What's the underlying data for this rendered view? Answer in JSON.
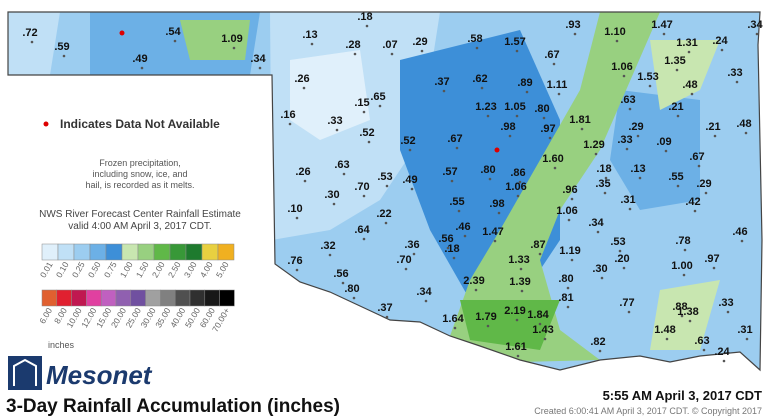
{
  "title": "3-Day Rainfall Accumulation (inches)",
  "timestamp": "5:55 AM April 3, 2017 CDT",
  "created": "Created 6:00:41 AM April 3, 2017 CDT. © Copyright 2017",
  "brand": "Mesonet",
  "missing_note": "Indicates Data Not Available",
  "frozen_note": [
    "Frozen precipitation,",
    "including snow, ice, and",
    "hail, is recorded as it melts."
  ],
  "estimate_note": [
    "NWS River Forecast Center Rainfall Estimate",
    "valid 4:00 AM April 3, 2017 CDT."
  ],
  "legend_unit": "inches",
  "legend_rows": [
    [
      {
        "label": "0.01",
        "color": "#e0f0fb"
      },
      {
        "label": "0.10",
        "color": "#c0e0f6"
      },
      {
        "label": "0.25",
        "color": "#9ccdf0"
      },
      {
        "label": "0.50",
        "color": "#6cb0e6"
      },
      {
        "label": "0.75",
        "color": "#3d8fd8"
      },
      {
        "label": "1.00",
        "color": "#c8e6b0"
      },
      {
        "label": "1.50",
        "color": "#98d080"
      },
      {
        "label": "2.00",
        "color": "#60b848"
      },
      {
        "label": "2.50",
        "color": "#389838"
      },
      {
        "label": "3.00",
        "color": "#1e7a2e"
      },
      {
        "label": "4.00",
        "color": "#e8d040"
      },
      {
        "label": "5.00",
        "color": "#f0b020"
      }
    ],
    [
      {
        "label": "6.00",
        "color": "#e06030"
      },
      {
        "label": "8.00",
        "color": "#e02030"
      },
      {
        "label": "10.00",
        "color": "#c01850"
      },
      {
        "label": "12.00",
        "color": "#e040a0"
      },
      {
        "label": "15.00",
        "color": "#c060c0"
      },
      {
        "label": "20.00",
        "color": "#9060b0"
      },
      {
        "label": "25.00",
        "color": "#7050a0"
      },
      {
        "label": "30.00",
        "color": "#a0a0a0"
      },
      {
        "label": "35.00",
        "color": "#808080"
      },
      {
        "label": "40.00",
        "color": "#505050"
      },
      {
        "label": "50.00",
        "color": "#303030"
      },
      {
        "label": "60.00",
        "color": "#181818"
      },
      {
        "label": "70.00+",
        "color": "#000000"
      }
    ]
  ],
  "stations": [
    ".72",
    ".59",
    ".49",
    ".54",
    "1.09",
    ".34",
    ".18",
    ".13",
    ".28",
    ".07",
    ".29",
    ".58",
    "1.57",
    ".93",
    "1.10",
    "1.47",
    ".34",
    "1.31",
    ".24",
    ".67",
    "1.06",
    "1.35",
    ".26",
    ".65",
    ".37",
    ".62",
    ".89",
    "1.11",
    "1.53",
    ".48",
    ".33",
    ".15",
    "1.23",
    "1.05",
    ".80",
    ".63",
    ".21",
    ".16",
    ".33",
    ".52",
    ".98",
    ".97",
    "1.81",
    ".29",
    ".21",
    ".48",
    ".67",
    "1.29",
    ".33",
    ".09",
    ".52",
    ".63",
    ".53",
    ".49",
    ".57",
    ".80",
    ".86",
    "1.60",
    ".18",
    ".13",
    ".55",
    ".67",
    ".29",
    ".26",
    ".70",
    ".30",
    "1.06",
    ".96",
    ".35",
    ".98",
    ".55",
    ".31",
    ".42",
    ".10",
    ".22",
    "1.06",
    ".34",
    ".46",
    ".64",
    ".56",
    ".18",
    "1.47",
    ".46",
    ".36",
    ".87",
    "1.19",
    ".53",
    ".78",
    ".32",
    ".70",
    "1.33",
    ".20",
    "1.00",
    ".97",
    ".76",
    ".30",
    ".56",
    ".80",
    "2.39",
    "1.39",
    ".80",
    ".34",
    ".81",
    ".77",
    ".88",
    ".37",
    "1.64",
    "1.79",
    "2.19",
    "1.84",
    "1.38",
    ".33",
    "1.43",
    "1.48",
    ".31",
    ".82",
    ".63",
    "1.61",
    ".24"
  ]
}
